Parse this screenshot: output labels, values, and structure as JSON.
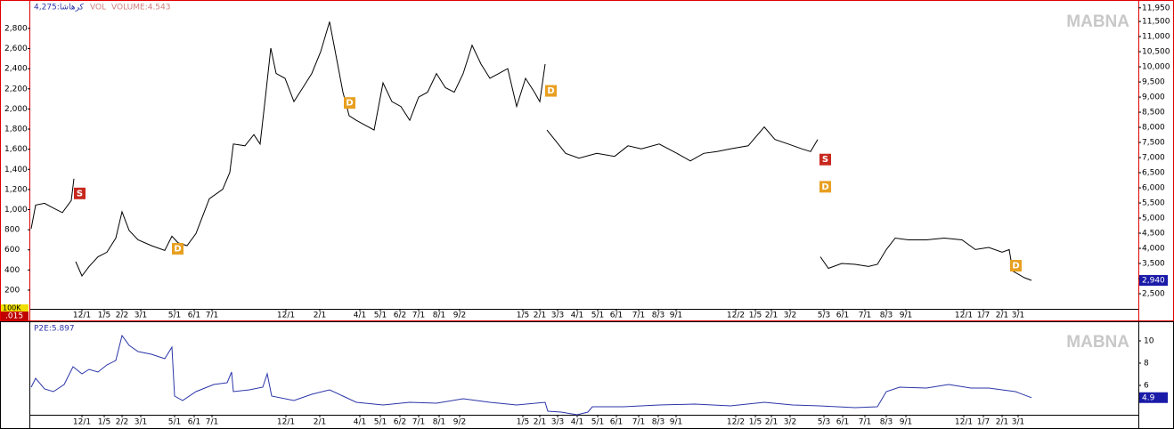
{
  "watermark": "MABNA",
  "chart_data": [
    {
      "type": "line",
      "title": "4,275:کرهاشا",
      "vol_label": "VOL",
      "volume_label": "VOLUME:4.543",
      "corner_labels": [
        "100K",
        ".015"
      ],
      "x": [
        1,
        6,
        16,
        26,
        36,
        46,
        49,
        50,
        51,
        58,
        66,
        76,
        86,
        96,
        103,
        111,
        121,
        136,
        151,
        159,
        166,
        176,
        186,
        201,
        216,
        224,
        228,
        241,
        251,
        258,
        264,
        270,
        276,
        286,
        296,
        306,
        316,
        326,
        336,
        344,
        351,
        358,
        366,
        376,
        386,
        396,
        406,
        416,
        426,
        436,
        446,
        456,
        466,
        476,
        486,
        496,
        506,
        516,
        526,
        536,
        546,
        556,
        566,
        572,
        578,
        579,
        580,
        591,
        601,
        616,
        636,
        656,
        671,
        686,
        706,
        726,
        741,
        756,
        771,
        786,
        806,
        824,
        836,
        851,
        866,
        876,
        884,
        885,
        887,
        896,
        911,
        926,
        941,
        951,
        961,
        971,
        986,
        1006,
        1026,
        1046,
        1061,
        1076,
        1091,
        1099,
        1103,
        1116,
        1124
      ],
      "series": [
        {
          "color": "#000000",
          "axis": "y2",
          "values": [
            4650,
            5430,
            5490,
            5330,
            5180,
            5580,
            6300,
            null,
            3560,
            3090,
            3400,
            3720,
            3870,
            4340,
            5210,
            4590,
            4280,
            4090,
            3930,
            4400,
            4180,
            4090,
            4490,
            5640,
            5950,
            6510,
            7450,
            7390,
            7760,
            7450,
            9000,
            10620,
            9780,
            9620,
            8850,
            9310,
            9780,
            10500,
            11490,
            10250,
            9160,
            8380,
            8230,
            8070,
            7910,
            9470,
            8850,
            8690,
            8230,
            9000,
            9160,
            9780,
            9310,
            9160,
            9780,
            10710,
            10090,
            9620,
            9780,
            9940,
            8690,
            9620,
            9160,
            8850,
            10090,
            null,
            7910,
            7510,
            7140,
            6980,
            7140,
            7040,
            7390,
            7290,
            7450,
            7140,
            6890,
            7140,
            7200,
            7290,
            7390,
            8010,
            7600,
            7450,
            7290,
            7200,
            7600,
            null,
            3720,
            3340,
            3500,
            3470,
            3400,
            3470,
            3960,
            4340,
            4280,
            4280,
            4340,
            4280,
            3960,
            4030,
            3870,
            3960,
            3250,
            3030,
            2940
          ]
        }
      ],
      "last_value": {
        "value": 2940,
        "label": "2,940"
      },
      "markers": [
        {
          "label": "S",
          "x": 55,
          "y": 5830,
          "color": "#c8281e"
        },
        {
          "label": "D",
          "x": 165,
          "y": 4000,
          "color": "#e8a020"
        },
        {
          "label": "D",
          "x": 358,
          "y": 8820,
          "color": "#e8a020"
        },
        {
          "label": "D",
          "x": 584,
          "y": 9220,
          "color": "#e8a020"
        },
        {
          "label": "S",
          "x": 892,
          "y": 6950,
          "color": "#c8281e"
        },
        {
          "label": "D",
          "x": 892,
          "y": 6050,
          "color": "#e8a020"
        },
        {
          "label": "D",
          "x": 1106,
          "y": 3440,
          "color": "#e8a020"
        }
      ],
      "xlim": [
        0,
        1244
      ],
      "xticks": [
        {
          "value": 58,
          "label": "12/1"
        },
        {
          "value": 83,
          "label": "1/5"
        },
        {
          "value": 103,
          "label": "2/2"
        },
        {
          "value": 124,
          "label": "3/1"
        },
        {
          "value": 162,
          "label": "5/1"
        },
        {
          "value": 184,
          "label": "6/1"
        },
        {
          "value": 204,
          "label": "7/1"
        },
        {
          "value": 287,
          "label": "12/1"
        },
        {
          "value": 325,
          "label": "2/1"
        },
        {
          "value": 370,
          "label": "4/1"
        },
        {
          "value": 393,
          "label": "5/1"
        },
        {
          "value": 415,
          "label": "6/2"
        },
        {
          "value": 436,
          "label": "7/1"
        },
        {
          "value": 459,
          "label": "8/1"
        },
        {
          "value": 482,
          "label": "9/2"
        },
        {
          "value": 553,
          "label": "1/5"
        },
        {
          "value": 572,
          "label": "2/1"
        },
        {
          "value": 592,
          "label": "3/3"
        },
        {
          "value": 614,
          "label": "4/1"
        },
        {
          "value": 637,
          "label": "5/1"
        },
        {
          "value": 658,
          "label": "6/1"
        },
        {
          "value": 683,
          "label": "7/1"
        },
        {
          "value": 705,
          "label": "8/3"
        },
        {
          "value": 725,
          "label": "9/1"
        },
        {
          "value": 792,
          "label": "12/2"
        },
        {
          "value": 814,
          "label": "1/5"
        },
        {
          "value": 832,
          "label": "2/1"
        },
        {
          "value": 853,
          "label": "3/2"
        },
        {
          "value": 891,
          "label": "5/3"
        },
        {
          "value": 912,
          "label": "6/1"
        },
        {
          "value": 937,
          "label": "7/1"
        },
        {
          "value": 961,
          "label": "8/3"
        },
        {
          "value": 983,
          "label": "9/1"
        },
        {
          "value": 1048,
          "label": "12/1"
        },
        {
          "value": 1070,
          "label": "1/7"
        },
        {
          "value": 1091,
          "label": "2/1"
        },
        {
          "value": 1109,
          "label": "3/1"
        }
      ],
      "ylim": [
        14,
        3065
      ],
      "yticks": [
        200,
        400,
        600,
        800,
        {
          "value": 1000,
          "label": "1,000"
        },
        {
          "value": 1200,
          "label": "1,200"
        },
        {
          "value": 1400,
          "label": "1,400"
        },
        {
          "value": 1600,
          "label": "1,600"
        },
        {
          "value": 1800,
          "label": "1,800"
        },
        {
          "value": 2000,
          "label": "2,000"
        },
        {
          "value": 2200,
          "label": "2,200"
        },
        {
          "value": 2400,
          "label": "2,400"
        },
        {
          "value": 2600,
          "label": "2,600"
        },
        {
          "value": 2800,
          "label": "2,800"
        }
      ],
      "y2lim": [
        2000,
        12150
      ],
      "y2ticks": [
        {
          "value": 2500,
          "label": "2,500"
        },
        {
          "value": 3000,
          "label": "3,000"
        },
        {
          "value": 3500,
          "label": "3,500"
        },
        {
          "value": 4000,
          "label": "4,000"
        },
        {
          "value": 4500,
          "label": "4,500"
        },
        {
          "value": 5000,
          "label": "5,000"
        },
        {
          "value": 5500,
          "label": "5,500"
        },
        {
          "value": 6000,
          "label": "6,000"
        },
        {
          "value": 6500,
          "label": "6,500"
        },
        {
          "value": 7000,
          "label": "7,000"
        },
        {
          "value": 7500,
          "label": "7,500"
        },
        {
          "value": 8000,
          "label": "8,000"
        },
        {
          "value": 8500,
          "label": "8,500"
        },
        {
          "value": 9000,
          "label": "9,000"
        },
        {
          "value": 9500,
          "label": "9,500"
        },
        {
          "value": 10000,
          "label": "10,000"
        },
        {
          "value": 10500,
          "label": "10,500"
        },
        {
          "value": 11000,
          "label": "11,000"
        },
        {
          "value": 11500,
          "label": "11,500"
        },
        {
          "value": 11950,
          "label": "11,950"
        }
      ]
    },
    {
      "type": "line",
      "title": "P2E:5.897",
      "x": [
        1,
        6,
        16,
        26,
        38,
        48,
        58,
        66,
        76,
        86,
        96,
        103,
        111,
        121,
        136,
        151,
        159,
        162,
        171,
        186,
        206,
        221,
        226,
        228,
        246,
        261,
        266,
        271,
        296,
        316,
        336,
        351,
        366,
        396,
        426,
        456,
        486,
        516,
        546,
        578,
        581,
        596,
        614,
        626,
        631,
        666,
        706,
        746,
        786,
        824,
        856,
        886,
        926,
        951,
        961,
        976,
        1006,
        1031,
        1056,
        1076,
        1091,
        1106,
        1124
      ],
      "series": [
        {
          "color": "#2b35a8",
          "values": [
            5.84,
            6.64,
            5.68,
            5.44,
            6.08,
            7.68,
            7.04,
            7.44,
            7.2,
            7.84,
            8.24,
            10.48,
            9.6,
            9.04,
            8.8,
            8.4,
            9.44,
            5.04,
            4.64,
            5.44,
            6.08,
            6.24,
            7.2,
            5.44,
            5.6,
            5.84,
            7.04,
            5.04,
            4.64,
            5.2,
            5.6,
            5.04,
            4.48,
            4.24,
            4.48,
            4.4,
            4.8,
            4.48,
            4.24,
            4.48,
            3.68,
            3.6,
            3.36,
            3.6,
            4.08,
            4.08,
            4.24,
            4.32,
            4.16,
            4.48,
            4.24,
            4.16,
            4.0,
            4.08,
            5.44,
            5.84,
            5.76,
            6.08,
            5.76,
            5.76,
            5.6,
            5.44,
            4.9
          ]
        }
      ],
      "last_value": 4.9,
      "xlim": [
        0,
        1244
      ],
      "ylim": [
        3.36,
        11.68
      ],
      "yticks": [
        6,
        8,
        10
      ]
    }
  ]
}
